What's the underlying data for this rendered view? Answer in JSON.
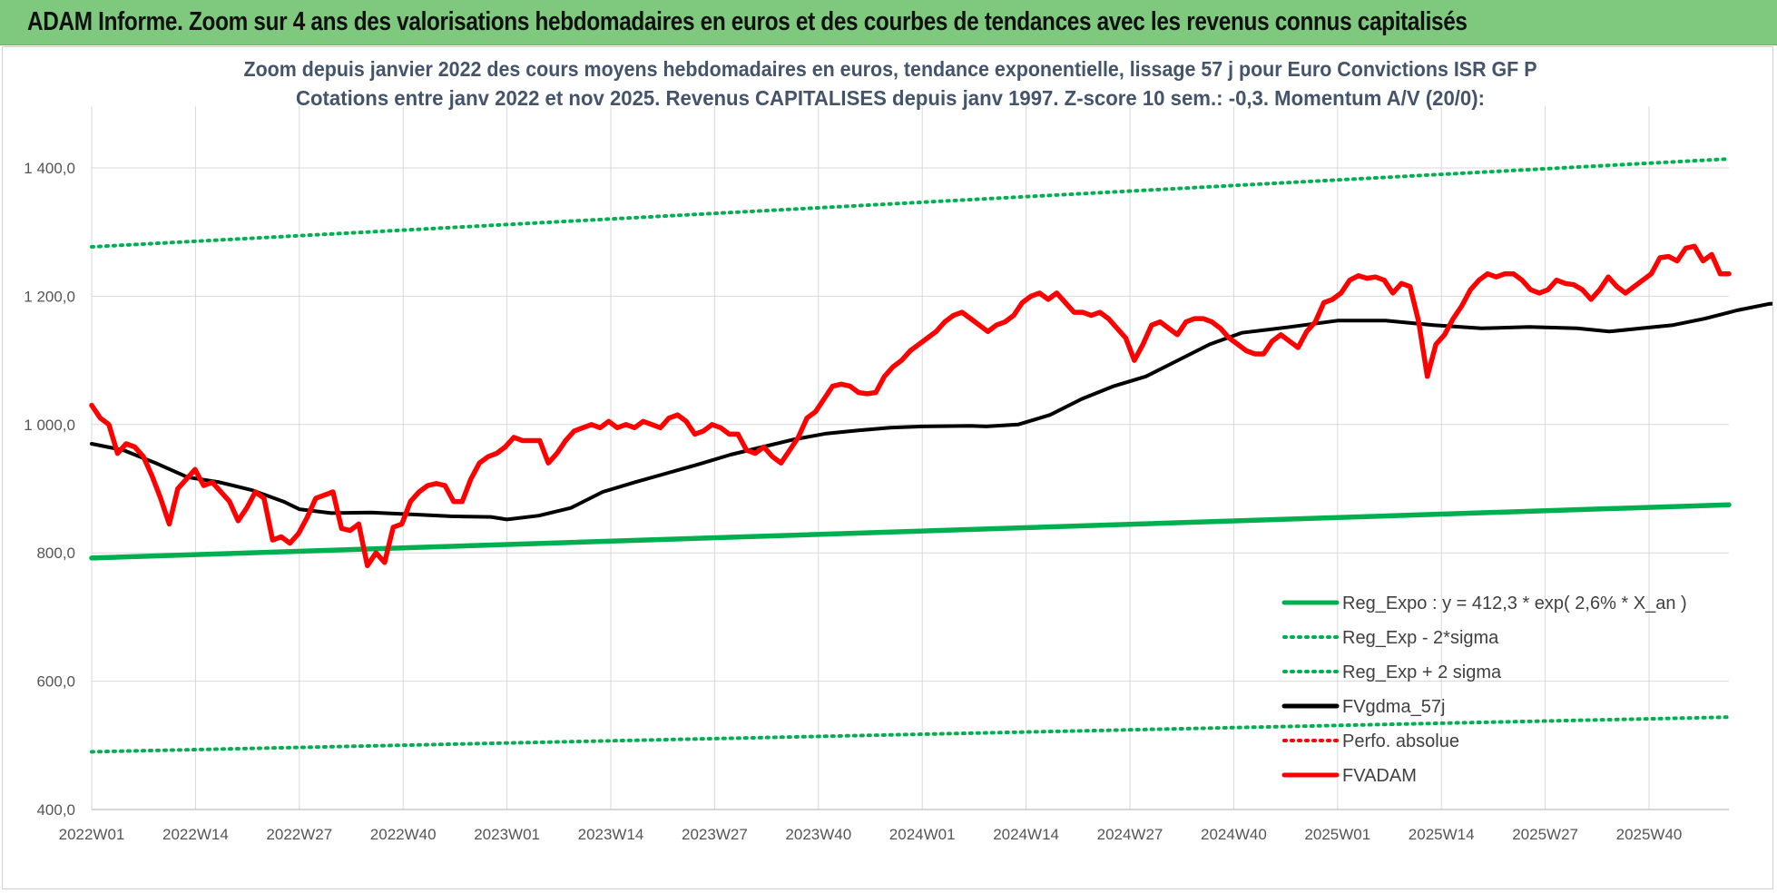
{
  "banner": {
    "title": "ADAM Informe. Zoom sur 4 ans des valorisations hebdomadaires en euros et des courbes de tendances avec les revenus connus capitalisés"
  },
  "colors": {
    "banner_bg": "#7fc97f",
    "reg_expo": "#00b050",
    "sigma": "#00b050",
    "fvgdma": "#000000",
    "perfo": "#ff0000",
    "fvadam": "#ff0000",
    "grid": "#d9d9d9",
    "title_text": "#44546a"
  },
  "chart_data": {
    "type": "line",
    "title": "Zoom depuis janvier 2022 des cours moyens hebdomadaires en euros, tendance exponentielle, lissage 57 j pour Euro Convictions ISR GF P",
    "subtitle": "Cotations entre janv 2022 et nov 2025. Revenus CAPITALISES depuis janv 1997. Z-score 10 sem.: -0,3. Momentum A/V (20/0):",
    "ylim": [
      400,
      1500
    ],
    "y_ticks": [
      400,
      600,
      800,
      1000,
      1200,
      1400
    ],
    "y_tick_labels": [
      "400,0",
      "600,0",
      "800,0",
      "1 000,0",
      "1 200,0",
      "1 400,0"
    ],
    "x_ticks": [
      {
        "label": "2022W01",
        "week": 0
      },
      {
        "label": "2022W14",
        "week": 13
      },
      {
        "label": "2022W27",
        "week": 26
      },
      {
        "label": "2022W40",
        "week": 39
      },
      {
        "label": "2023W01",
        "week": 52
      },
      {
        "label": "2023W14",
        "week": 65
      },
      {
        "label": "2023W27",
        "week": 78
      },
      {
        "label": "2023W40",
        "week": 91
      },
      {
        "label": "2024W01",
        "week": 104
      },
      {
        "label": "2024W14",
        "week": 117
      },
      {
        "label": "2024W27",
        "week": 130
      },
      {
        "label": "2024W40",
        "week": 143
      },
      {
        "label": "2025W01",
        "week": 156
      },
      {
        "label": "2025W14",
        "week": 169
      },
      {
        "label": "2025W27",
        "week": 182
      },
      {
        "label": "2025W40",
        "week": 195
      }
    ],
    "x_max_week": 205,
    "grid": true,
    "legend_position": "bottom-right",
    "series": [
      {
        "name": "Reg_Expo : y = 412,3 * exp( 2,6% *  X_an )",
        "style": "solid-thick",
        "color": "#00b050",
        "points": [
          [
            0,
            792
          ],
          [
            205,
            875
          ]
        ]
      },
      {
        "name": "Reg_Exp - 2*sigma",
        "style": "dotted",
        "color": "#00b050",
        "points": [
          [
            0,
            490
          ],
          [
            205,
            544
          ]
        ]
      },
      {
        "name": "Reg_Exp + 2 sigma",
        "style": "dotted",
        "color": "#00b050",
        "points": [
          [
            0,
            1277
          ],
          [
            205,
            1414
          ]
        ]
      },
      {
        "name": "FVgdma_57j",
        "style": "solid",
        "color": "#000000",
        "points": [
          [
            0,
            970
          ],
          [
            4,
            960
          ],
          [
            8,
            940
          ],
          [
            12,
            918
          ],
          [
            16,
            910
          ],
          [
            20,
            898
          ],
          [
            24,
            880
          ],
          [
            26,
            868
          ],
          [
            30,
            862
          ],
          [
            35,
            863
          ],
          [
            40,
            860
          ],
          [
            45,
            857
          ],
          [
            50,
            856
          ],
          [
            52,
            852
          ],
          [
            56,
            858
          ],
          [
            60,
            870
          ],
          [
            64,
            895
          ],
          [
            68,
            910
          ],
          [
            72,
            924
          ],
          [
            76,
            938
          ],
          [
            80,
            953
          ],
          [
            84,
            965
          ],
          [
            88,
            977
          ],
          [
            92,
            986
          ],
          [
            96,
            991
          ],
          [
            100,
            995
          ],
          [
            104,
            997
          ],
          [
            110,
            998
          ],
          [
            112,
            997
          ],
          [
            116,
            1000
          ],
          [
            120,
            1015
          ],
          [
            124,
            1040
          ],
          [
            128,
            1060
          ],
          [
            132,
            1075
          ],
          [
            136,
            1100
          ],
          [
            140,
            1125
          ],
          [
            144,
            1143
          ],
          [
            150,
            1152
          ],
          [
            156,
            1162
          ],
          [
            162,
            1162
          ],
          [
            168,
            1155
          ],
          [
            174,
            1150
          ],
          [
            180,
            1152
          ],
          [
            186,
            1150
          ],
          [
            190,
            1145
          ],
          [
            194,
            1150
          ],
          [
            198,
            1155
          ],
          [
            202,
            1165
          ],
          [
            206,
            1178
          ],
          [
            210,
            1188
          ],
          [
            214,
            1192
          ],
          [
            218,
            1185
          ],
          [
            220,
            1180
          ],
          [
            224,
            1192
          ],
          [
            228,
            1205
          ],
          [
            232,
            1210
          ],
          [
            236,
            1212
          ],
          [
            240,
            1215
          ],
          [
            246,
            1220
          ],
          [
            250,
            1228
          ],
          [
            254,
            1237
          ],
          [
            258,
            1242
          ],
          [
            262,
            1242
          ],
          [
            264,
            1240
          ]
        ]
      },
      {
        "name": "Perfo. absolue",
        "style": "dotted",
        "color": "#ff0000",
        "points": []
      },
      {
        "name": "FVADAM",
        "style": "solid-thick",
        "color": "#ff0000",
        "points": [
          [
            0,
            1030
          ],
          [
            2,
            1010
          ],
          [
            4,
            1000
          ],
          [
            6,
            955
          ],
          [
            8,
            970
          ],
          [
            10,
            965
          ],
          [
            12,
            950
          ],
          [
            14,
            920
          ],
          [
            16,
            885
          ],
          [
            18,
            845
          ],
          [
            20,
            900
          ],
          [
            22,
            915
          ],
          [
            24,
            930
          ],
          [
            26,
            905
          ],
          [
            28,
            910
          ],
          [
            30,
            895
          ],
          [
            32,
            880
          ],
          [
            34,
            850
          ],
          [
            36,
            870
          ],
          [
            38,
            895
          ],
          [
            40,
            885
          ],
          [
            42,
            820
          ],
          [
            44,
            825
          ],
          [
            46,
            815
          ],
          [
            48,
            830
          ],
          [
            50,
            855
          ],
          [
            52,
            885
          ],
          [
            54,
            890
          ],
          [
            56,
            895
          ],
          [
            58,
            838
          ],
          [
            60,
            835
          ],
          [
            62,
            845
          ],
          [
            64,
            780
          ],
          [
            66,
            800
          ],
          [
            68,
            785
          ],
          [
            70,
            840
          ],
          [
            72,
            845
          ],
          [
            74,
            880
          ],
          [
            76,
            895
          ],
          [
            78,
            905
          ],
          [
            80,
            908
          ],
          [
            82,
            905
          ],
          [
            84,
            880
          ],
          [
            86,
            880
          ],
          [
            88,
            915
          ],
          [
            90,
            940
          ],
          [
            92,
            950
          ],
          [
            94,
            955
          ],
          [
            96,
            965
          ],
          [
            98,
            980
          ],
          [
            100,
            975
          ],
          [
            102,
            975
          ],
          [
            104,
            975
          ],
          [
            106,
            940
          ],
          [
            108,
            955
          ],
          [
            110,
            975
          ],
          [
            112,
            990
          ],
          [
            114,
            995
          ],
          [
            116,
            1000
          ],
          [
            118,
            995
          ],
          [
            120,
            1005
          ],
          [
            122,
            995
          ],
          [
            124,
            1000
          ],
          [
            126,
            995
          ],
          [
            128,
            1005
          ],
          [
            130,
            1000
          ],
          [
            132,
            995
          ],
          [
            134,
            1010
          ],
          [
            136,
            1015
          ],
          [
            138,
            1005
          ],
          [
            140,
            985
          ],
          [
            142,
            990
          ],
          [
            144,
            1000
          ],
          [
            146,
            995
          ],
          [
            148,
            985
          ],
          [
            150,
            985
          ],
          [
            152,
            960
          ],
          [
            154,
            955
          ],
          [
            156,
            965
          ],
          [
            158,
            950
          ],
          [
            160,
            940
          ],
          [
            162,
            960
          ],
          [
            164,
            980
          ],
          [
            166,
            1010
          ],
          [
            168,
            1020
          ],
          [
            170,
            1040
          ],
          [
            172,
            1060
          ],
          [
            174,
            1063
          ],
          [
            176,
            1060
          ],
          [
            178,
            1050
          ],
          [
            180,
            1048
          ],
          [
            182,
            1050
          ],
          [
            184,
            1075
          ],
          [
            186,
            1090
          ],
          [
            188,
            1100
          ],
          [
            190,
            1115
          ],
          [
            192,
            1125
          ],
          [
            194,
            1135
          ],
          [
            196,
            1145
          ],
          [
            198,
            1160
          ],
          [
            200,
            1170
          ],
          [
            202,
            1175
          ],
          [
            204,
            1165
          ],
          [
            206,
            1155
          ],
          [
            208,
            1145
          ],
          [
            210,
            1155
          ],
          [
            212,
            1160
          ],
          [
            214,
            1170
          ],
          [
            216,
            1190
          ],
          [
            218,
            1200
          ],
          [
            220,
            1205
          ],
          [
            222,
            1195
          ],
          [
            224,
            1205
          ],
          [
            226,
            1190
          ],
          [
            228,
            1175
          ],
          [
            230,
            1175
          ],
          [
            232,
            1170
          ],
          [
            234,
            1175
          ],
          [
            236,
            1165
          ],
          [
            238,
            1150
          ],
          [
            240,
            1135
          ],
          [
            242,
            1100
          ],
          [
            244,
            1125
          ],
          [
            246,
            1155
          ],
          [
            248,
            1160
          ],
          [
            250,
            1150
          ],
          [
            252,
            1140
          ],
          [
            254,
            1160
          ],
          [
            256,
            1165
          ],
          [
            258,
            1165
          ],
          [
            260,
            1160
          ],
          [
            262,
            1150
          ],
          [
            264,
            1135
          ],
          [
            266,
            1125
          ],
          [
            268,
            1115
          ],
          [
            270,
            1110
          ],
          [
            272,
            1110
          ],
          [
            274,
            1130
          ],
          [
            276,
            1140
          ],
          [
            278,
            1130
          ],
          [
            280,
            1120
          ],
          [
            282,
            1145
          ],
          [
            284,
            1160
          ],
          [
            286,
            1190
          ],
          [
            288,
            1195
          ],
          [
            290,
            1205
          ],
          [
            292,
            1225
          ],
          [
            294,
            1232
          ],
          [
            296,
            1228
          ],
          [
            298,
            1230
          ],
          [
            300,
            1225
          ],
          [
            302,
            1205
          ],
          [
            304,
            1220
          ],
          [
            306,
            1215
          ],
          [
            308,
            1160
          ],
          [
            310,
            1075
          ],
          [
            312,
            1125
          ],
          [
            314,
            1140
          ],
          [
            316,
            1165
          ],
          [
            318,
            1185
          ],
          [
            320,
            1210
          ],
          [
            322,
            1225
          ],
          [
            324,
            1235
          ],
          [
            326,
            1230
          ],
          [
            328,
            1235
          ],
          [
            330,
            1235
          ],
          [
            332,
            1225
          ],
          [
            334,
            1210
          ],
          [
            336,
            1205
          ],
          [
            338,
            1210
          ],
          [
            340,
            1225
          ],
          [
            342,
            1220
          ],
          [
            344,
            1218
          ],
          [
            346,
            1210
          ],
          [
            348,
            1195
          ],
          [
            350,
            1210
          ],
          [
            352,
            1230
          ],
          [
            354,
            1215
          ],
          [
            356,
            1205
          ],
          [
            358,
            1215
          ],
          [
            360,
            1225
          ],
          [
            362,
            1235
          ],
          [
            364,
            1260
          ],
          [
            366,
            1262
          ],
          [
            368,
            1255
          ],
          [
            370,
            1275
          ],
          [
            372,
            1278
          ],
          [
            374,
            1255
          ],
          [
            376,
            1265
          ],
          [
            378,
            1235
          ],
          [
            380,
            1235
          ]
        ]
      }
    ]
  }
}
